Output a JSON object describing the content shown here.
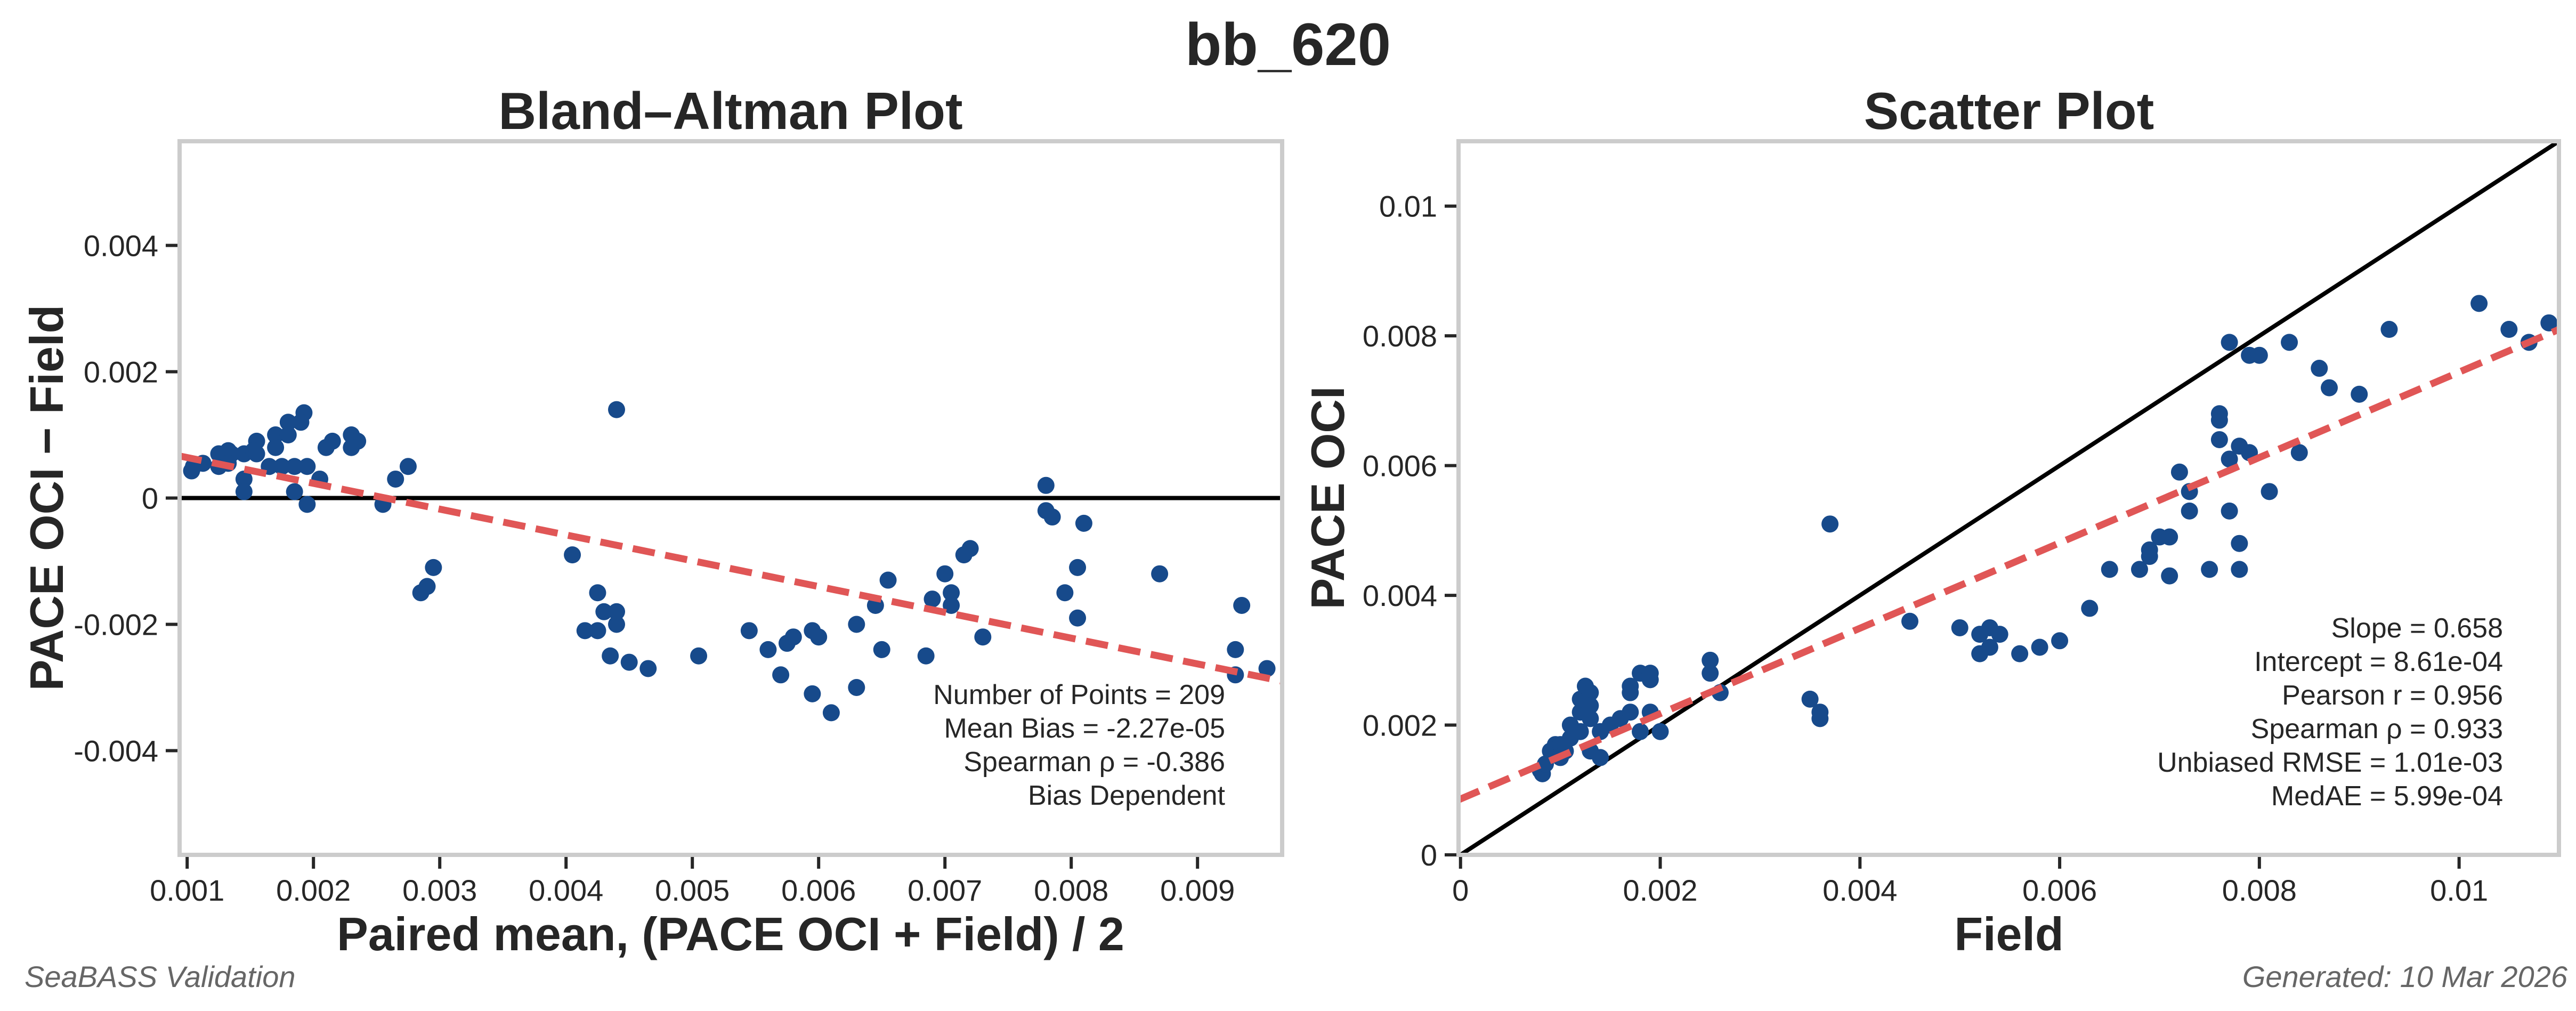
{
  "title": "bb_620",
  "footer": {
    "left": "SeaBASS Validation",
    "right": "Generated: 10 Mar 2026"
  },
  "colors": {
    "points": "#174a8b",
    "fit": "#e05656",
    "reference": "#000000",
    "frame": "#cccccc"
  },
  "chart_data": [
    {
      "type": "scatter",
      "title": "Bland–Altman Plot",
      "xlabel": "Paired mean, (PACE OCI + Field) / 2",
      "ylabel": "PACE OCI − Field",
      "xlim": [
        0.00094,
        0.00967
      ],
      "ylim": [
        -0.00565,
        0.00565
      ],
      "xticks": [
        0.001,
        0.002,
        0.003,
        0.004,
        0.005,
        0.006,
        0.007,
        0.008,
        0.009
      ],
      "xtick_labels": [
        "0.001",
        "0.002",
        "0.003",
        "0.004",
        "0.005",
        "0.006",
        "0.007",
        "0.008",
        "0.009"
      ],
      "yticks": [
        0.004,
        0.002,
        0,
        -0.002,
        -0.004
      ],
      "ytick_labels": [
        "0.004",
        "0.002",
        "0",
        "-0.002",
        "-0.004"
      ],
      "points_derived_from": "scatter pairs: x=(PACE+Field)/2, y=PACE−Field",
      "zero_line": 0,
      "trend_line": {
        "slope": -0.4085,
        "intercept": 0.00105
      },
      "annotations": [
        "Number of Points = 209",
        "Mean Bias = -2.27e-05",
        "Spearman ρ = -0.386",
        "Bias Dependent"
      ]
    },
    {
      "type": "scatter",
      "title": "Scatter Plot",
      "xlabel": "Field",
      "ylabel": "PACE OCI",
      "xlim": [
        -2e-05,
        0.011
      ],
      "ylim": [
        0,
        0.011
      ],
      "xticks": [
        0,
        0.002,
        0.004,
        0.006,
        0.008,
        0.01
      ],
      "xtick_labels": [
        "0",
        "0.002",
        "0.004",
        "0.006",
        "0.008",
        "0.01"
      ],
      "yticks": [
        0,
        0.002,
        0.004,
        0.006,
        0.008,
        0.01
      ],
      "ytick_labels": [
        "0",
        "0.002",
        "0.004",
        "0.006",
        "0.008",
        "0.01"
      ],
      "one_to_one_line": true,
      "fit_line": {
        "slope": 0.658,
        "intercept": 0.000861
      },
      "annotations": [
        "Slope = 0.658",
        "Intercept = 8.61e-04",
        "Pearson r = 0.956",
        "Spearman ρ = 0.933",
        "Unbiased RMSE = 1.01e-03",
        "MedAE = 5.99e-04"
      ],
      "points": [
        [
          0.0008,
          0.0013
        ],
        [
          0.00082,
          0.00125
        ],
        [
          0.00085,
          0.0014
        ],
        [
          0.0009,
          0.0016
        ],
        [
          0.00095,
          0.0017
        ],
        [
          0.001,
          0.0015
        ],
        [
          0.001,
          0.0017
        ],
        [
          0.00105,
          0.0016
        ],
        [
          0.0011,
          0.0018
        ],
        [
          0.0011,
          0.002
        ],
        [
          0.00115,
          0.0019
        ],
        [
          0.0012,
          0.0022
        ],
        [
          0.0012,
          0.0024
        ],
        [
          0.00125,
          0.0026
        ],
        [
          0.0013,
          0.0025
        ],
        [
          0.0013,
          0.0023
        ],
        [
          0.0012,
          0.0019
        ],
        [
          0.0013,
          0.0016
        ],
        [
          0.0014,
          0.0015
        ],
        [
          0.0013,
          0.0021
        ],
        [
          0.0015,
          0.002
        ],
        [
          0.0016,
          0.0021
        ],
        [
          0.0017,
          0.0026
        ],
        [
          0.0017,
          0.0025
        ],
        [
          0.0018,
          0.0028
        ],
        [
          0.0019,
          0.0028
        ],
        [
          0.0019,
          0.0027
        ],
        [
          0.0018,
          0.0019
        ],
        [
          0.0019,
          0.0022
        ],
        [
          0.002,
          0.0019
        ],
        [
          0.0017,
          0.0022
        ],
        [
          0.0014,
          0.0019
        ],
        [
          0.0025,
          0.0028
        ],
        [
          0.0025,
          0.003
        ],
        [
          0.0026,
          0.0025
        ],
        [
          0.0035,
          0.0024
        ],
        [
          0.0036,
          0.0022
        ],
        [
          0.0036,
          0.0021
        ],
        [
          0.0037,
          0.0051
        ],
        [
          0.0045,
          0.0036
        ],
        [
          0.005,
          0.0035
        ],
        [
          0.0052,
          0.0034
        ],
        [
          0.0052,
          0.0031
        ],
        [
          0.0053,
          0.0035
        ],
        [
          0.0053,
          0.0032
        ],
        [
          0.0054,
          0.0034
        ],
        [
          0.0056,
          0.0031
        ],
        [
          0.0058,
          0.0032
        ],
        [
          0.006,
          0.0033
        ],
        [
          0.0063,
          0.0038
        ],
        [
          0.0065,
          0.0044
        ],
        [
          0.0068,
          0.0044
        ],
        [
          0.0069,
          0.0046
        ],
        [
          0.0069,
          0.0047
        ],
        [
          0.0071,
          0.0043
        ],
        [
          0.007,
          0.0049
        ],
        [
          0.0071,
          0.0049
        ],
        [
          0.0072,
          0.0059
        ],
        [
          0.0073,
          0.0056
        ],
        [
          0.0073,
          0.0053
        ],
        [
          0.0075,
          0.0044
        ],
        [
          0.0076,
          0.0064
        ],
        [
          0.0076,
          0.0068
        ],
        [
          0.0076,
          0.0067
        ],
        [
          0.0077,
          0.0079
        ],
        [
          0.0078,
          0.0063
        ],
        [
          0.0077,
          0.0061
        ],
        [
          0.0077,
          0.0053
        ],
        [
          0.0078,
          0.0048
        ],
        [
          0.0078,
          0.0044
        ],
        [
          0.0079,
          0.0062
        ],
        [
          0.0079,
          0.0077
        ],
        [
          0.008,
          0.0077
        ],
        [
          0.0081,
          0.0056
        ],
        [
          0.0083,
          0.0079
        ],
        [
          0.0084,
          0.0062
        ],
        [
          0.0086,
          0.0075
        ],
        [
          0.0087,
          0.0072
        ],
        [
          0.009,
          0.0071
        ],
        [
          0.0093,
          0.0081
        ],
        [
          0.0102,
          0.0085
        ],
        [
          0.0105,
          0.0081
        ],
        [
          0.0107,
          0.0079
        ],
        [
          0.0109,
          0.0082
        ]
      ]
    }
  ]
}
